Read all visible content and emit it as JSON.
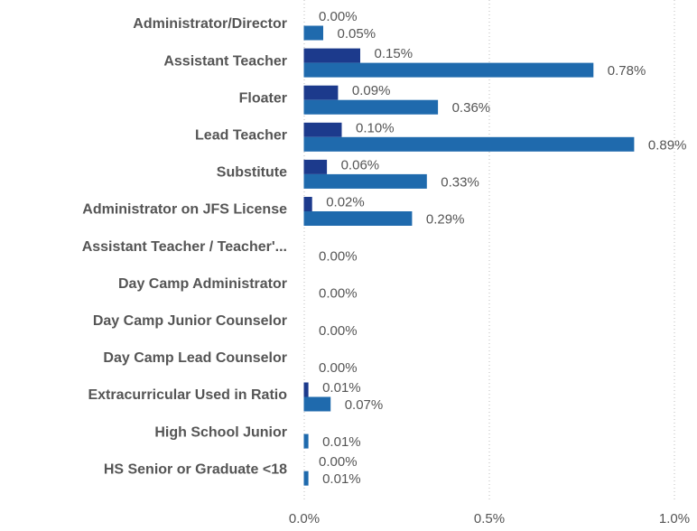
{
  "chart_data": {
    "type": "hbar",
    "categories": [
      "Administrator/Director",
      "Assistant Teacher",
      "Floater",
      "Lead Teacher",
      "Substitute",
      "Administrator on JFS License",
      "Assistant Teacher / Teacher'...",
      "Day Camp Administrator",
      "Day Camp Junior Counselor",
      "Day Camp Lead Counselor",
      "Extracurricular Used in Ratio",
      "High School Junior",
      "HS Senior or Graduate <18"
    ],
    "series": [
      {
        "color": "#1c3a8c",
        "values": [
          0.0,
          0.15,
          0.09,
          0.1,
          0.06,
          0.02,
          null,
          null,
          null,
          null,
          0.01,
          null,
          0.0
        ],
        "value_labels": [
          "0.00%",
          "0.15%",
          "0.09%",
          "0.10%",
          "0.06%",
          "0.02%",
          null,
          null,
          null,
          null,
          "0.01%",
          null,
          "0.00%"
        ]
      },
      {
        "color": "#1f6aad",
        "values": [
          0.05,
          0.78,
          0.36,
          0.89,
          0.33,
          0.29,
          0.0,
          0.0,
          0.0,
          0.0,
          0.07,
          0.01,
          0.01
        ],
        "value_labels": [
          "0.05%",
          "0.78%",
          "0.36%",
          "0.89%",
          "0.33%",
          "0.29%",
          "0.00%",
          "0.00%",
          "0.00%",
          "0.00%",
          "0.07%",
          "0.01%",
          "0.01%"
        ]
      }
    ],
    "xlim": [
      0,
      1.0
    ],
    "xticks": [
      {
        "value": 0,
        "label": "0.0%"
      },
      {
        "value": 0.5,
        "label": "0.5%"
      },
      {
        "value": 1.0,
        "label": "1.0%"
      }
    ],
    "grid": true
  }
}
